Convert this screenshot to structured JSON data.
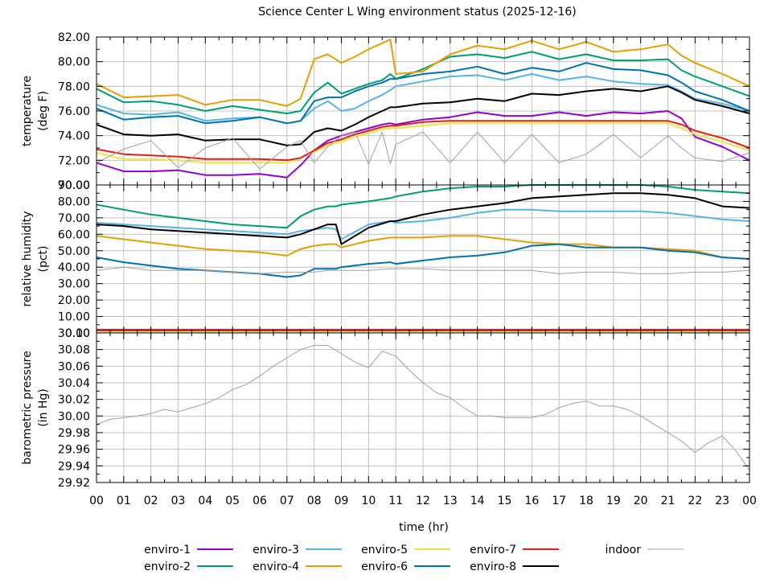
{
  "chart_data": {
    "type": "line",
    "title": "Science Center L Wing environment status (2025-12-16)",
    "xlabel": "time (hr)",
    "x_ticks": [
      "00",
      "01",
      "02",
      "03",
      "04",
      "05",
      "06",
      "07",
      "08",
      "09",
      "10",
      "11",
      "12",
      "13",
      "14",
      "15",
      "16",
      "17",
      "18",
      "19",
      "20",
      "21",
      "22",
      "23",
      "00"
    ],
    "xlim": [
      0,
      24
    ],
    "grid": true,
    "legend_placement": "bottom",
    "legend": [
      {
        "name": "enviro-1",
        "color": "#9400d3"
      },
      {
        "name": "enviro-2",
        "color": "#009e73"
      },
      {
        "name": "enviro-3",
        "color": "#56b4e9"
      },
      {
        "name": "enviro-4",
        "color": "#e69f00"
      },
      {
        "name": "enviro-5",
        "color": "#f0e442"
      },
      {
        "name": "enviro-6",
        "color": "#0072b2"
      },
      {
        "name": "enviro-7",
        "color": "#e51e10"
      },
      {
        "name": "enviro-8",
        "color": "#000000"
      },
      {
        "name": "indoor",
        "color": "#a0a0a0"
      }
    ],
    "panels": [
      {
        "id": "temperature",
        "ylabel": [
          "temperature",
          "(deg F)"
        ],
        "ylim": [
          70,
          82
        ],
        "y_ticks": [
          "70.00",
          "72.00",
          "74.00",
          "76.00",
          "78.00",
          "80.00",
          "82.00"
        ],
        "x": [
          0,
          1,
          2,
          3,
          4,
          5,
          6,
          7,
          7.5,
          8,
          8.5,
          9,
          9.5,
          10,
          10.5,
          10.8,
          11,
          12,
          13,
          14,
          15,
          16,
          17,
          18,
          19,
          20,
          21,
          21.5,
          22,
          23,
          24
        ],
        "series": [
          {
            "name": "enviro-1",
            "values": [
              71.8,
              71.1,
              71.1,
              71.2,
              70.8,
              70.8,
              70.9,
              70.6,
              71.6,
              72.8,
              73.6,
              74.0,
              74.3,
              74.6,
              74.9,
              75.0,
              74.9,
              75.3,
              75.5,
              75.9,
              75.6,
              75.6,
              75.9,
              75.6,
              75.9,
              75.8,
              76.0,
              75.4,
              73.9,
              73.1,
              72.0
            ]
          },
          {
            "name": "enviro-2",
            "values": [
              77.8,
              76.7,
              76.8,
              76.5,
              76.0,
              76.4,
              76.1,
              75.8,
              76.0,
              77.5,
              78.3,
              77.4,
              77.8,
              78.2,
              78.5,
              79.0,
              78.6,
              79.4,
              80.4,
              80.6,
              80.3,
              80.8,
              80.2,
              80.6,
              80.1,
              80.1,
              80.2,
              79.3,
              78.8,
              78.0,
              77.2
            ]
          },
          {
            "name": "enviro-3",
            "values": [
              76.5,
              75.8,
              75.7,
              75.9,
              75.2,
              75.4,
              75.5,
              75.0,
              75.2,
              76.2,
              76.8,
              76.0,
              76.2,
              76.8,
              77.3,
              77.7,
              78.0,
              78.4,
              78.8,
              78.9,
              78.5,
              79.0,
              78.5,
              78.8,
              78.4,
              78.2,
              78.1,
              77.6,
              77.0,
              76.6,
              76.0
            ]
          },
          {
            "name": "enviro-4",
            "values": [
              78.2,
              77.1,
              77.2,
              77.3,
              76.5,
              76.9,
              76.9,
              76.4,
              77.0,
              80.2,
              80.6,
              79.9,
              80.4,
              81.0,
              81.5,
              81.8,
              79.0,
              79.2,
              80.6,
              81.3,
              81.0,
              81.7,
              81.0,
              81.6,
              80.8,
              81.0,
              81.4,
              80.5,
              79.9,
              79.0,
              78.0
            ]
          },
          {
            "name": "enviro-5",
            "values": [
              72.6,
              72.1,
              72.1,
              72.0,
              71.8,
              71.8,
              71.8,
              71.8,
              72.2,
              72.7,
              73.2,
              73.5,
              73.9,
              74.2,
              74.5,
              74.6,
              74.6,
              74.8,
              75.0,
              75.0,
              75.0,
              75.0,
              75.0,
              75.0,
              75.0,
              75.0,
              75.0,
              74.6,
              74.1,
              73.5,
              72.8
            ]
          },
          {
            "name": "enviro-6",
            "values": [
              76.2,
              75.3,
              75.5,
              75.6,
              75.0,
              75.2,
              75.5,
              75.0,
              75.2,
              76.8,
              77.1,
              77.1,
              77.6,
              78.0,
              78.3,
              78.6,
              78.6,
              79.0,
              79.2,
              79.6,
              79.0,
              79.5,
              79.2,
              79.9,
              79.4,
              79.3,
              78.9,
              78.3,
              77.6,
              76.9,
              76.0
            ]
          },
          {
            "name": "enviro-7",
            "values": [
              72.9,
              72.5,
              72.4,
              72.3,
              72.1,
              72.1,
              72.1,
              72.0,
              72.2,
              72.8,
              73.4,
              73.7,
              74.1,
              74.4,
              74.7,
              74.8,
              74.8,
              75.1,
              75.2,
              75.2,
              75.2,
              75.2,
              75.2,
              75.2,
              75.2,
              75.2,
              75.2,
              74.9,
              74.4,
              73.8,
              73.0
            ]
          },
          {
            "name": "enviro-8",
            "values": [
              74.9,
              74.1,
              74.0,
              74.1,
              73.6,
              73.7,
              73.7,
              73.2,
              73.3,
              74.3,
              74.6,
              74.4,
              74.9,
              75.5,
              76.0,
              76.3,
              76.3,
              76.6,
              76.7,
              77.0,
              76.8,
              77.4,
              77.3,
              77.6,
              77.8,
              77.6,
              78.0,
              77.5,
              76.9,
              76.4,
              75.8
            ]
          },
          {
            "name": "indoor",
            "values": [
              71.8,
              72.9,
              73.6,
              71.4,
              73.0,
              73.8,
              71.3,
              73.1,
              73.6,
              71.8,
              73.1,
              74.0,
              74.3,
              71.7,
              74.3,
              71.7,
              73.3,
              74.3,
              71.8,
              74.3,
              71.8,
              74.1,
              71.8,
              72.5,
              74.1,
              72.2,
              74.0,
              73.0,
              72.2,
              71.9,
              72.6
            ]
          }
        ]
      },
      {
        "id": "humidity",
        "ylabel": [
          "relative humidity",
          "(pct)"
        ],
        "ylim": [
          0,
          90
        ],
        "y_ticks": [
          "0.00",
          "10.00",
          "20.00",
          "30.00",
          "40.00",
          "50.00",
          "60.00",
          "70.00",
          "80.00",
          "90.00"
        ],
        "x": [
          0,
          1,
          2,
          3,
          4,
          5,
          6,
          7,
          7.5,
          8,
          8.5,
          8.8,
          9,
          10,
          10.8,
          11,
          12,
          13,
          14,
          15,
          16,
          17,
          18,
          19,
          20,
          21,
          22,
          23,
          24
        ],
        "series": [
          {
            "name": "enviro-1",
            "values": [
              1.5,
              1.5,
              1.5,
              1.5,
              1.5,
              1.5,
              1.5,
              1.5,
              1.5,
              1.5,
              1.5,
              1.5,
              1.5,
              1.5,
              1.5,
              1.5,
              1.5,
              1.5,
              1.5,
              1.5,
              1.5,
              1.5,
              1.5,
              1.5,
              1.5,
              1.5,
              1.5,
              1.5,
              1.5
            ]
          },
          {
            "name": "enviro-2",
            "values": [
              78,
              75,
              72,
              70,
              68,
              66,
              65,
              64,
              71,
              75,
              77,
              77,
              78,
              80,
              82,
              83,
              86,
              88,
              89,
              89,
              90,
              90,
              90,
              90,
              90,
              89,
              87,
              86,
              85
            ]
          },
          {
            "name": "enviro-3",
            "values": [
              67,
              66,
              65,
              64,
              63,
              62,
              61,
              60,
              62,
              63,
              64,
              63,
              57,
              66,
              68,
              67,
              68,
              70,
              73,
              75,
              75,
              74,
              74,
              74,
              74,
              73,
              71,
              69,
              68
            ]
          },
          {
            "name": "enviro-4",
            "values": [
              59,
              57,
              55,
              53,
              51,
              50,
              49,
              47,
              51,
              53,
              54,
              54,
              52,
              56,
              58,
              58,
              58,
              59,
              59,
              57,
              55,
              54,
              54,
              52,
              52,
              51,
              50,
              46,
              45
            ]
          },
          {
            "name": "enviro-5",
            "values": [
              0.3,
              0.3,
              0.3,
              0.3,
              0.3,
              0.3,
              0.3,
              0.3,
              0.3,
              0.3,
              0.3,
              0.3,
              0.3,
              0.3,
              0.3,
              0.3,
              0.3,
              0.3,
              0.3,
              0.3,
              0.3,
              0.3,
              0.3,
              0.3,
              0.3,
              0.3,
              0.3,
              0.3,
              0.3
            ]
          },
          {
            "name": "enviro-6",
            "values": [
              46,
              43,
              41,
              39,
              38,
              37,
              36,
              34,
              35,
              39,
              39,
              39,
              40,
              42,
              43,
              42,
              44,
              46,
              47,
              49,
              53,
              54,
              52,
              52,
              52,
              50,
              49,
              46,
              45
            ]
          },
          {
            "name": "enviro-7",
            "values": [
              2,
              2,
              2,
              2,
              2,
              2,
              2,
              2,
              2,
              2,
              2,
              2,
              2,
              2,
              2,
              2,
              2,
              2,
              2,
              2,
              2,
              2,
              2,
              2,
              2,
              2,
              2,
              2,
              2
            ]
          },
          {
            "name": "enviro-8",
            "values": [
              66,
              65,
              63,
              62,
              61,
              60,
              59,
              58,
              60,
              63,
              66,
              66,
              54,
              64,
              68,
              68,
              72,
              75,
              77,
              79,
              82,
              83,
              84,
              85,
              85,
              84,
              82,
              77,
              76
            ]
          },
          {
            "name": "indoor",
            "values": [
              38,
              40,
              38,
              38,
              38,
              37,
              36,
              37,
              37,
              37,
              38,
              38,
              38,
              38,
              39,
              39,
              39,
              38,
              38,
              38,
              38,
              36,
              37,
              37,
              36,
              36,
              37,
              37,
              38
            ]
          }
        ]
      },
      {
        "id": "pressure",
        "ylabel": [
          "barometric pressure",
          "(in Hg)"
        ],
        "ylim": [
          29.92,
          30.1
        ],
        "y_ticks": [
          "29.92",
          "29.94",
          "29.96",
          "29.98",
          "30.00",
          "30.02",
          "30.04",
          "30.06",
          "30.08",
          "30.10"
        ],
        "x": [
          0,
          0.5,
          1,
          1.5,
          2,
          2.5,
          3,
          3.5,
          4,
          4.5,
          5,
          5.5,
          6,
          6.5,
          7,
          7.5,
          8,
          8.5,
          9,
          9.5,
          10,
          10.5,
          11,
          11.5,
          12,
          12.5,
          13,
          13.5,
          14,
          14.5,
          15,
          15.5,
          16,
          16.5,
          17,
          17.5,
          18,
          18.5,
          19,
          19.5,
          20,
          20.5,
          21,
          21.5,
          22,
          22.5,
          23,
          23.5,
          24
        ],
        "series": [
          {
            "name": "indoor",
            "values": [
              29.99,
              29.996,
              29.998,
              30.0,
              30.003,
              30.008,
              30.005,
              30.01,
              30.015,
              30.022,
              30.032,
              30.038,
              30.048,
              30.06,
              30.07,
              30.08,
              30.085,
              30.085,
              30.075,
              30.065,
              30.058,
              30.078,
              30.072,
              30.055,
              30.04,
              30.028,
              30.022,
              30.01,
              30.0,
              30.0,
              29.998,
              29.998,
              29.998,
              30.002,
              30.01,
              30.015,
              30.018,
              30.012,
              30.012,
              30.008,
              30.0,
              29.99,
              29.98,
              29.97,
              29.956,
              29.968,
              29.976,
              29.958,
              29.935
            ]
          }
        ]
      }
    ]
  }
}
